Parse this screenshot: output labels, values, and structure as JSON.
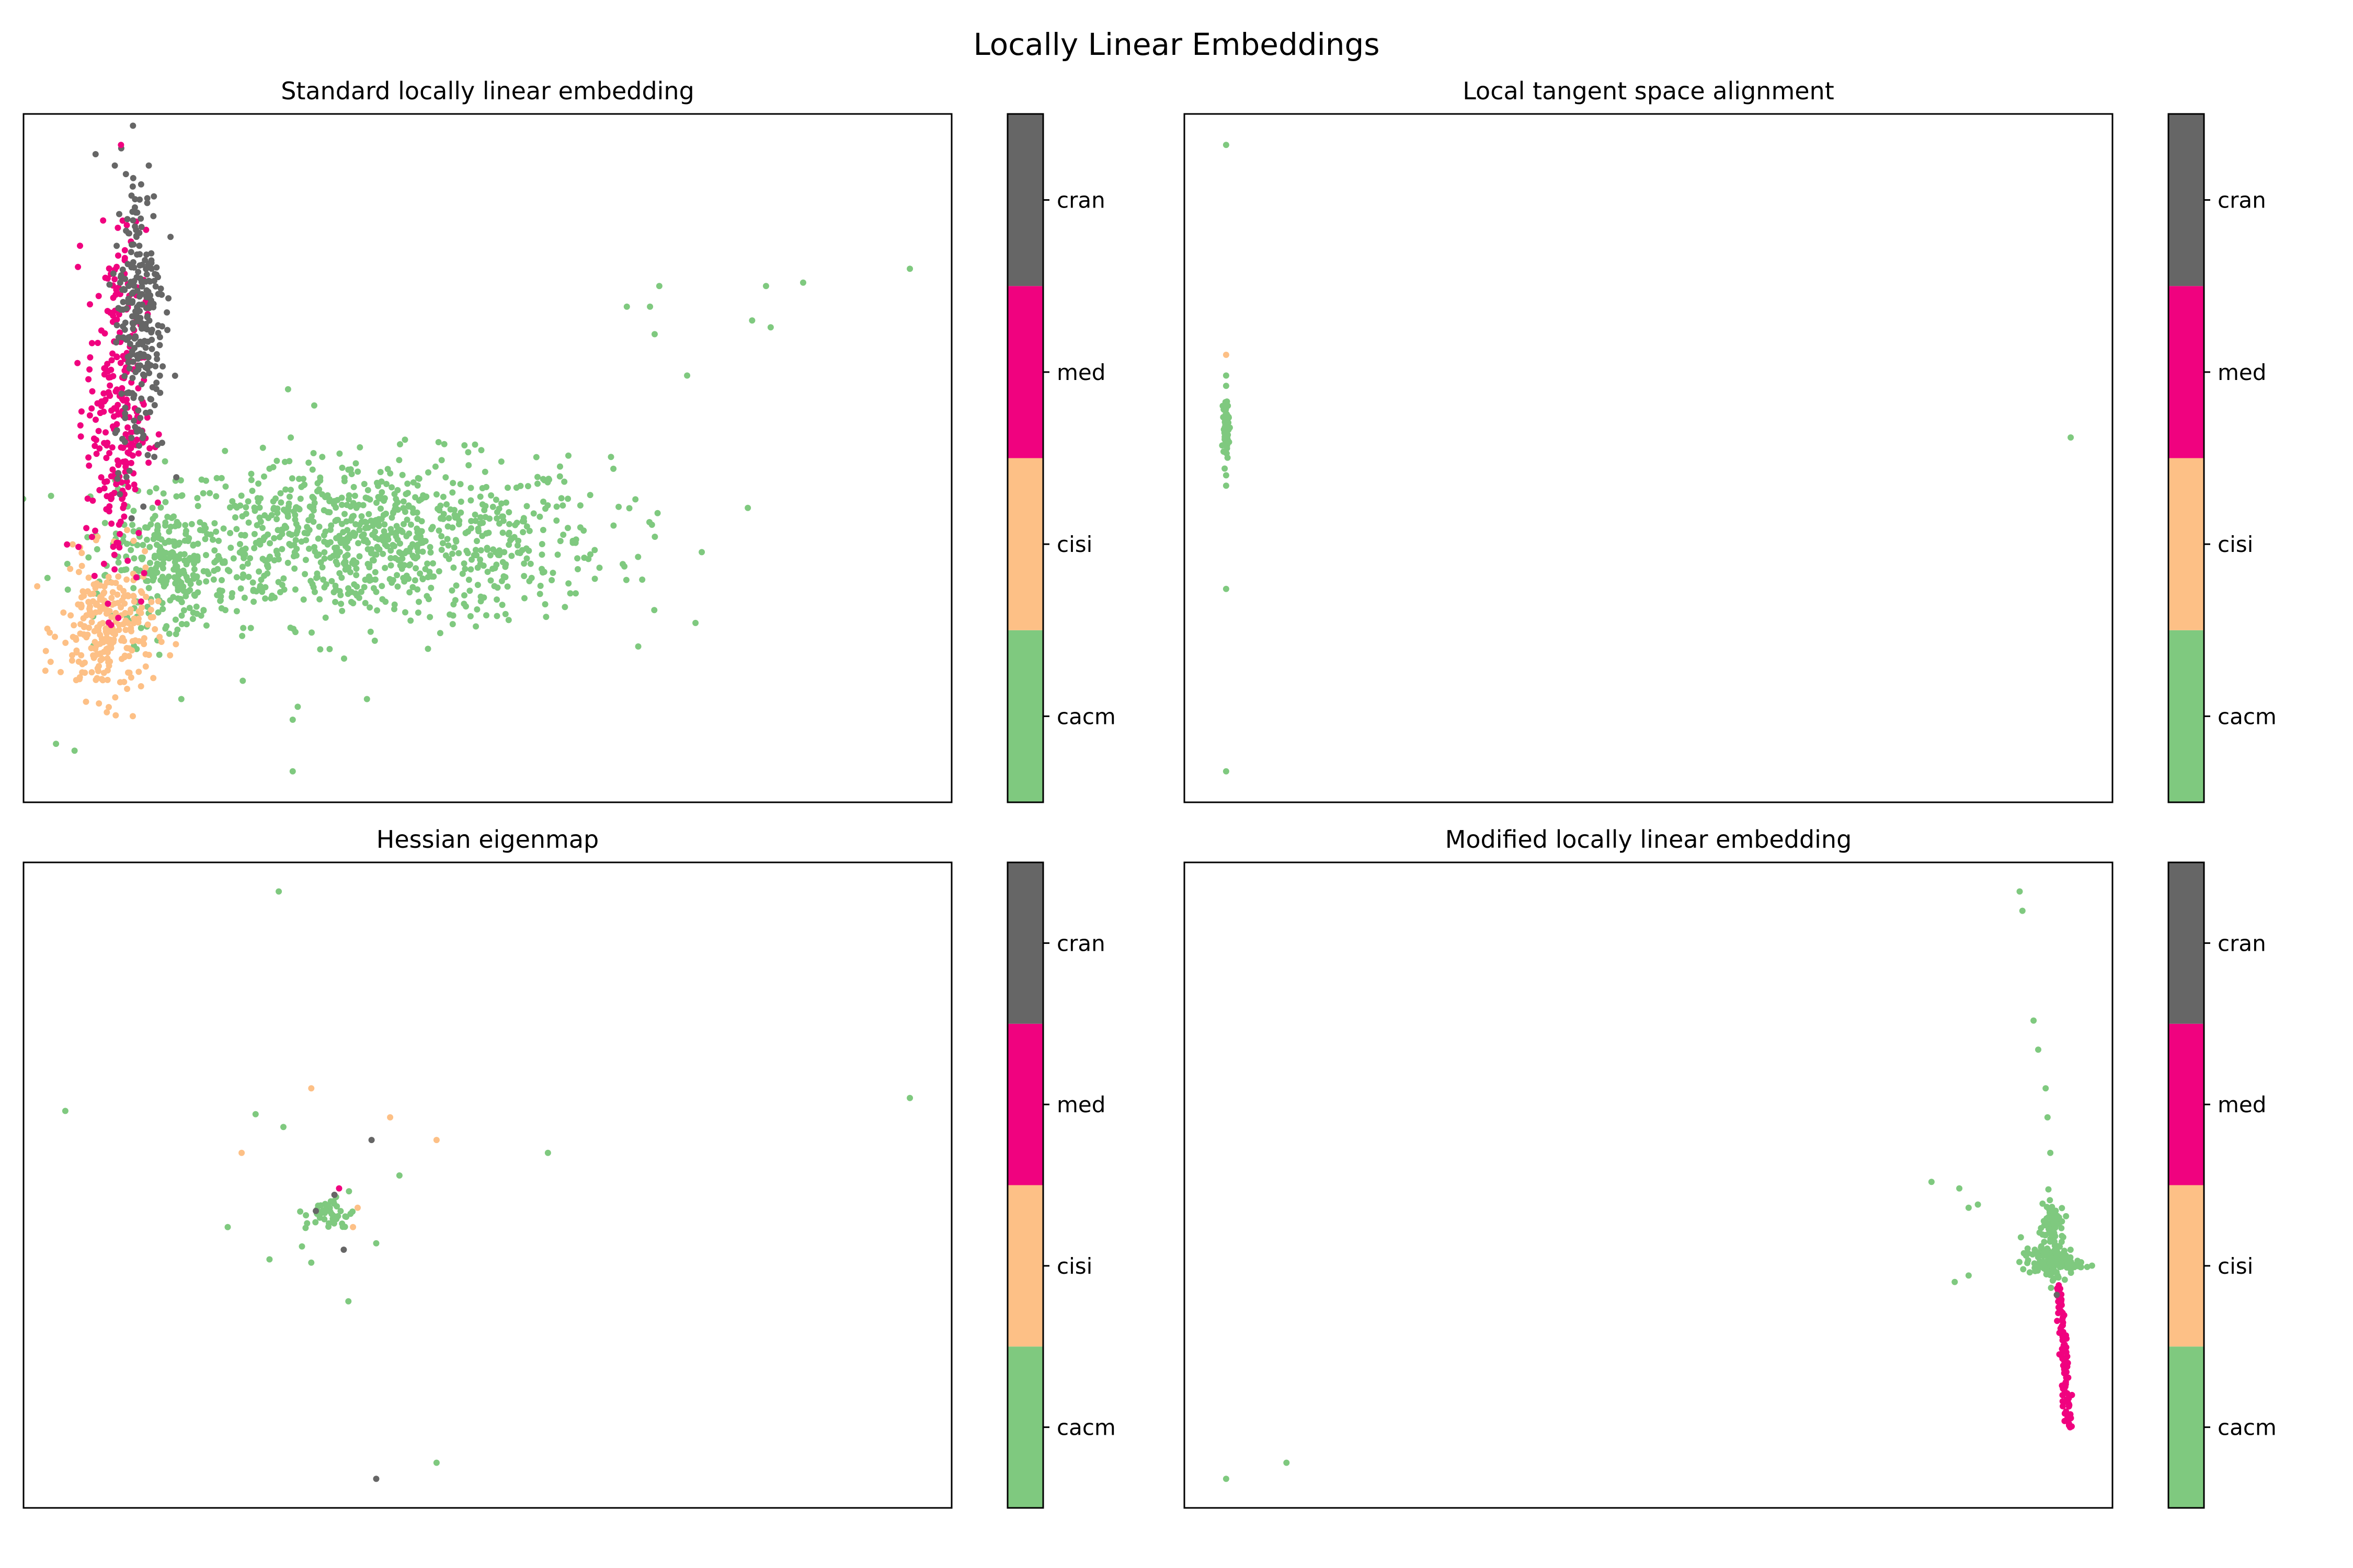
{
  "figure": {
    "title": "Locally Linear Embeddings"
  },
  "colorbar": {
    "categories": [
      "cacm",
      "cisi",
      "med",
      "cran"
    ],
    "colors": [
      "#7fc97f",
      "#fdc086",
      "#f0027f",
      "#666666"
    ]
  },
  "chart_data": [
    {
      "type": "scatter",
      "title": "Standard locally linear embedding",
      "xlabel": "",
      "ylabel": "",
      "x_ticks_shown": false,
      "y_ticks_shown": false,
      "xlim": [
        0,
        100
      ],
      "ylim": [
        0,
        100
      ],
      "grid": false,
      "legend": "colorbar-right",
      "clusters": [
        {
          "category": "cacm",
          "count": 950,
          "cx": 37,
          "cy": 38,
          "sx": 13,
          "sy": 6
        },
        {
          "category": "cacm",
          "count": 220,
          "cx": 16,
          "cy": 34,
          "sx": 3,
          "sy": 4
        },
        {
          "category": "cisi",
          "count": 260,
          "cx": 9,
          "cy": 25,
          "sx": 2.5,
          "sy": 5
        },
        {
          "category": "med",
          "count": 260,
          "cx": 10,
          "cy": 57,
          "sx": 1.6,
          "sy": 13
        },
        {
          "category": "cran",
          "count": 260,
          "cx": 12.5,
          "cy": 71,
          "sx": 1.4,
          "sy": 11
        }
      ],
      "outliers": [
        {
          "category": "med",
          "x": 10.5,
          "y": 95.5
        },
        {
          "category": "cran",
          "x": 13.5,
          "y": 92.5
        },
        {
          "category": "cacm",
          "x": 95.5,
          "y": 77.5
        },
        {
          "category": "cacm",
          "x": 84,
          "y": 75.5
        },
        {
          "category": "cacm",
          "x": 80,
          "y": 75
        },
        {
          "category": "cacm",
          "x": 68.5,
          "y": 75
        },
        {
          "category": "cacm",
          "x": 67.5,
          "y": 72
        },
        {
          "category": "cacm",
          "x": 65,
          "y": 72
        },
        {
          "category": "cacm",
          "x": 78.5,
          "y": 70
        },
        {
          "category": "cacm",
          "x": 68,
          "y": 68
        },
        {
          "category": "cacm",
          "x": 80.5,
          "y": 69
        },
        {
          "category": "cacm",
          "x": 71.5,
          "y": 62
        },
        {
          "category": "cacm",
          "x": 28.5,
          "y": 60
        },
        {
          "category": "cacm",
          "x": 17,
          "y": 15
        },
        {
          "category": "cacm",
          "x": 29,
          "y": 12
        },
        {
          "category": "cacm",
          "x": 29,
          "y": 4.5
        },
        {
          "category": "cacm",
          "x": 3.5,
          "y": 8.5
        },
        {
          "category": "cacm",
          "x": 5.5,
          "y": 7.5
        },
        {
          "category": "cacm",
          "x": 37,
          "y": 15
        }
      ]
    },
    {
      "type": "scatter",
      "title": "Local tangent space alignment",
      "xlabel": "",
      "ylabel": "",
      "x_ticks_shown": false,
      "y_ticks_shown": false,
      "xlim": [
        0,
        100
      ],
      "ylim": [
        0,
        100
      ],
      "grid": false,
      "legend": "colorbar-right",
      "clusters": [
        {
          "category": "cacm",
          "count": 60,
          "cx": 4.5,
          "cy": 54.5,
          "sx": 0.15,
          "sy": 2
        }
      ],
      "outliers": [
        {
          "category": "cacm",
          "x": 4.5,
          "y": 95.5
        },
        {
          "category": "cisi",
          "x": 4.5,
          "y": 65
        },
        {
          "category": "cacm",
          "x": 4.5,
          "y": 62
        },
        {
          "category": "cacm",
          "x": 4.5,
          "y": 60.5
        },
        {
          "category": "cacm",
          "x": 4.5,
          "y": 47.5
        },
        {
          "category": "cacm",
          "x": 4.5,
          "y": 46
        },
        {
          "category": "cacm",
          "x": 4.5,
          "y": 31
        },
        {
          "category": "cacm",
          "x": 4.5,
          "y": 4.5
        },
        {
          "category": "cacm",
          "x": 95.5,
          "y": 53
        }
      ]
    },
    {
      "type": "scatter",
      "title": "Hessian eigenmap",
      "xlabel": "",
      "ylabel": "",
      "x_ticks_shown": false,
      "y_ticks_shown": false,
      "xlim": [
        0,
        100
      ],
      "ylim": [
        0,
        100
      ],
      "grid": false,
      "legend": "colorbar-right",
      "clusters": [
        {
          "category": "cacm",
          "count": 45,
          "cx": 33,
          "cy": 45.5,
          "sx": 1.3,
          "sy": 1.3
        }
      ],
      "outliers": [
        {
          "category": "cacm",
          "x": 27.5,
          "y": 95.5
        },
        {
          "category": "cisi",
          "x": 31,
          "y": 65
        },
        {
          "category": "cacm",
          "x": 4.5,
          "y": 61.5
        },
        {
          "category": "cacm",
          "x": 95.5,
          "y": 63.5
        },
        {
          "category": "cacm",
          "x": 25,
          "y": 61
        },
        {
          "category": "cacm",
          "x": 28,
          "y": 59
        },
        {
          "category": "cisi",
          "x": 39.5,
          "y": 60.5
        },
        {
          "category": "cisi",
          "x": 44.5,
          "y": 57
        },
        {
          "category": "cisi",
          "x": 23.5,
          "y": 55
        },
        {
          "category": "cran",
          "x": 37.5,
          "y": 57
        },
        {
          "category": "cacm",
          "x": 56.5,
          "y": 55
        },
        {
          "category": "cacm",
          "x": 40.5,
          "y": 51.5
        },
        {
          "category": "cacm",
          "x": 22,
          "y": 43.5
        },
        {
          "category": "cisi",
          "x": 35.5,
          "y": 43.5
        },
        {
          "category": "cacm",
          "x": 30,
          "y": 40.5
        },
        {
          "category": "cran",
          "x": 34.5,
          "y": 40
        },
        {
          "category": "cacm",
          "x": 38,
          "y": 41
        },
        {
          "category": "cacm",
          "x": 26.5,
          "y": 38.5
        },
        {
          "category": "cacm",
          "x": 31,
          "y": 38
        },
        {
          "category": "cacm",
          "x": 35,
          "y": 32
        },
        {
          "category": "cran",
          "x": 38,
          "y": 4.5
        },
        {
          "category": "cacm",
          "x": 44.5,
          "y": 7
        },
        {
          "category": "cran",
          "x": 33.5,
          "y": 48.5
        },
        {
          "category": "cran",
          "x": 31.5,
          "y": 46
        },
        {
          "category": "cisi",
          "x": 36,
          "y": 46.5
        },
        {
          "category": "med",
          "x": 34,
          "y": 49.5
        }
      ]
    },
    {
      "type": "scatter",
      "title": "Modified locally linear embedding",
      "xlabel": "",
      "ylabel": "",
      "x_ticks_shown": false,
      "y_ticks_shown": false,
      "xlim": [
        0,
        100
      ],
      "ylim": [
        0,
        100
      ],
      "grid": false,
      "legend": "colorbar-right",
      "clusters": [
        {
          "category": "cacm",
          "count": 110,
          "cx": 93.3,
          "cy": 38,
          "sx": 1.6,
          "sy": 1.1
        },
        {
          "category": "cacm",
          "count": 90,
          "cx": 93.5,
          "cy": 43,
          "sx": 0.6,
          "sy": 3
        }
      ],
      "streaks": [
        {
          "category": "med",
          "count": 90,
          "x0": 94.2,
          "y0": 34.5,
          "x1": 95.3,
          "y1": 12.5,
          "jitter": 0.25
        }
      ],
      "outliers": [
        {
          "category": "cacm",
          "x": 90,
          "y": 95.5
        },
        {
          "category": "cacm",
          "x": 90.3,
          "y": 92.5
        },
        {
          "category": "cacm",
          "x": 91.5,
          "y": 75.5
        },
        {
          "category": "cacm",
          "x": 92,
          "y": 71
        },
        {
          "category": "cacm",
          "x": 92.8,
          "y": 65
        },
        {
          "category": "cacm",
          "x": 93,
          "y": 60.5
        },
        {
          "category": "cacm",
          "x": 93.3,
          "y": 55
        },
        {
          "category": "cacm",
          "x": 80.5,
          "y": 50.5
        },
        {
          "category": "cacm",
          "x": 83.5,
          "y": 49.5
        },
        {
          "category": "cacm",
          "x": 84.5,
          "y": 46.5
        },
        {
          "category": "cacm",
          "x": 85.5,
          "y": 47
        },
        {
          "category": "cacm",
          "x": 83,
          "y": 35
        },
        {
          "category": "cacm",
          "x": 84.5,
          "y": 36
        },
        {
          "category": "cran",
          "x": 94,
          "y": 33
        },
        {
          "category": "cacm",
          "x": 11,
          "y": 7
        },
        {
          "category": "cacm",
          "x": 4.5,
          "y": 4.5
        }
      ]
    }
  ]
}
